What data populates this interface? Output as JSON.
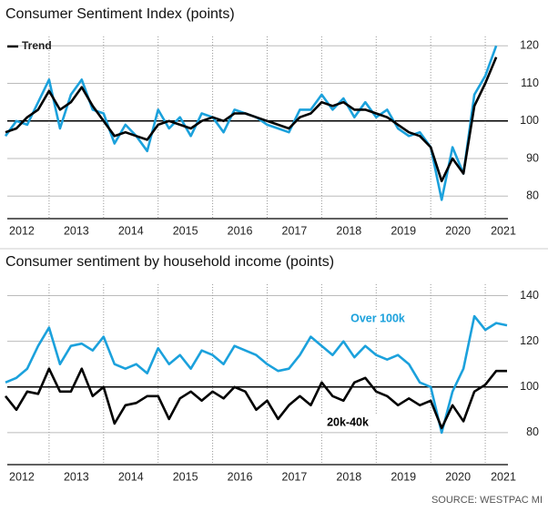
{
  "chart_data": [
    {
      "type": "line",
      "title": "Consumer Sentiment Index (points)",
      "legend": "top-left",
      "grid": true,
      "baseline": 100,
      "x": [
        2012.2,
        2012.4,
        2012.6,
        2012.8,
        2013.0,
        2013.2,
        2013.4,
        2013.6,
        2013.8,
        2014.0,
        2014.2,
        2014.4,
        2014.6,
        2014.8,
        2015.0,
        2015.2,
        2015.4,
        2015.6,
        2015.8,
        2016.0,
        2016.2,
        2016.4,
        2016.6,
        2016.8,
        2017.0,
        2017.2,
        2017.4,
        2017.6,
        2017.8,
        2018.0,
        2018.2,
        2018.4,
        2018.6,
        2018.8,
        2019.0,
        2019.2,
        2019.4,
        2019.6,
        2019.8,
        2020.0,
        2020.2,
        2020.4,
        2020.6,
        2020.8,
        2021.0,
        2021.2
      ],
      "series": [
        {
          "color": "#1ba1dc",
          "values": [
            96,
            100,
            99,
            105,
            111,
            98,
            107,
            111,
            103,
            102,
            94,
            99,
            96,
            92,
            103,
            98,
            101,
            96,
            102,
            101,
            97,
            103,
            102,
            101,
            99,
            98,
            97,
            103,
            103,
            107,
            103,
            106,
            101,
            105,
            101,
            103,
            98,
            96,
            97,
            93,
            79,
            93,
            86,
            107,
            112,
            120
          ]
        },
        {
          "name": "Trend",
          "color": "#000000",
          "values": [
            97,
            98,
            101,
            103,
            108,
            103,
            105,
            109,
            104,
            100,
            96,
            97,
            96,
            95,
            99,
            100,
            99,
            98,
            100,
            101,
            100,
            102,
            102,
            101,
            100,
            99,
            98,
            101,
            102,
            105,
            104,
            105,
            103,
            103,
            102,
            101,
            99,
            97,
            96,
            93,
            84,
            90,
            86,
            104,
            110,
            117
          ]
        }
      ],
      "xlim": [
        2012.1,
        2021.7
      ],
      "xticks": [
        {
          "value": 2012,
          "label": "2012"
        },
        {
          "value": 2013,
          "label": "2013"
        },
        {
          "value": 2014,
          "label": "2014"
        },
        {
          "value": 2015,
          "label": "2015"
        },
        {
          "value": 2016,
          "label": "2016"
        },
        {
          "value": 2017,
          "label": "2017"
        },
        {
          "value": 2018,
          "label": "2018"
        },
        {
          "value": 2019,
          "label": "2019"
        },
        {
          "value": 2020,
          "label": "2020"
        },
        {
          "value": 2021,
          "label": "2021"
        }
      ],
      "ylim": [
        74,
        122.5
      ],
      "yticks": [
        80,
        90,
        100,
        110,
        120
      ]
    },
    {
      "type": "line",
      "title": "Consumer sentiment by household income (points)",
      "legend": "inline",
      "grid": true,
      "baseline": 100,
      "x": [
        2012.2,
        2012.4,
        2012.6,
        2012.8,
        2013.0,
        2013.2,
        2013.4,
        2013.6,
        2013.8,
        2014.0,
        2014.2,
        2014.4,
        2014.6,
        2014.8,
        2015.0,
        2015.2,
        2015.4,
        2015.6,
        2015.8,
        2016.0,
        2016.2,
        2016.4,
        2016.6,
        2016.8,
        2017.0,
        2017.2,
        2017.4,
        2017.6,
        2017.8,
        2018.0,
        2018.2,
        2018.4,
        2018.6,
        2018.8,
        2019.0,
        2019.2,
        2019.4,
        2019.6,
        2019.8,
        2020.0,
        2020.2,
        2020.4,
        2020.6,
        2020.8,
        2021.0,
        2021.2,
        2021.4
      ],
      "series": [
        {
          "name": "Over 100k",
          "color": "#1ba1dc",
          "values": [
            102,
            104,
            108,
            118,
            126,
            110,
            118,
            119,
            116,
            122,
            110,
            108,
            110,
            106,
            117,
            110,
            114,
            108,
            116,
            114,
            110,
            118,
            116,
            114,
            110,
            107,
            108,
            114,
            122,
            118,
            114,
            120,
            113,
            118,
            114,
            112,
            114,
            110,
            102,
            100,
            80,
            98,
            108,
            131,
            125,
            128,
            127
          ]
        },
        {
          "name": "20k-40k",
          "color": "#000000",
          "values": [
            96,
            90,
            98,
            97,
            108,
            98,
            98,
            108,
            96,
            100,
            84,
            92,
            93,
            96,
            96,
            86,
            95,
            98,
            94,
            98,
            95,
            100,
            98,
            90,
            94,
            86,
            92,
            96,
            92,
            102,
            96,
            94,
            102,
            104,
            98,
            96,
            92,
            95,
            92,
            94,
            82,
            92,
            85,
            98,
            101,
            107,
            107
          ]
        }
      ],
      "xlim": [
        2012.1,
        2021.7
      ],
      "xticks": [
        {
          "value": 2012,
          "label": "2012"
        },
        {
          "value": 2013,
          "label": "2013"
        },
        {
          "value": 2014,
          "label": "2014"
        },
        {
          "value": 2015,
          "label": "2015"
        },
        {
          "value": 2016,
          "label": "2016"
        },
        {
          "value": 2017,
          "label": "2017"
        },
        {
          "value": 2018,
          "label": "2018"
        },
        {
          "value": 2019,
          "label": "2019"
        },
        {
          "value": 2020,
          "label": "2020"
        },
        {
          "value": 2021,
          "label": "2021"
        }
      ],
      "ylim": [
        66,
        145
      ],
      "yticks": [
        80,
        100,
        120,
        140
      ]
    }
  ],
  "source": "SOURCE: WESTPAC MI"
}
